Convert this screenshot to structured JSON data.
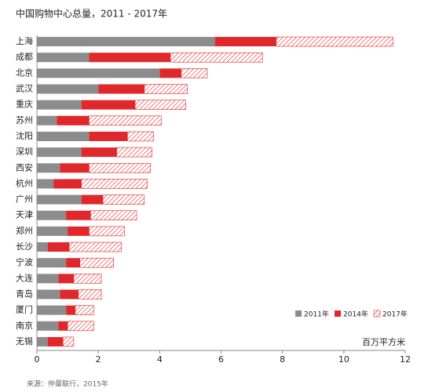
{
  "chart_data": {
    "type": "bar",
    "orientation": "horizontal",
    "stacked": true,
    "title": "中国购物中心总量，2011 - 2017年",
    "x_label": "百万平方米",
    "source": "来源：仲量联行，2015年",
    "categories": [
      "上海",
      "成都",
      "北京",
      "武汉",
      "重庆",
      "苏州",
      "沈阳",
      "深圳",
      "西安",
      "杭州",
      "广州",
      "天津",
      "郑州",
      "长沙",
      "宁波",
      "大连",
      "青岛",
      "厦门",
      "南京",
      "无锡"
    ],
    "series": [
      {
        "name": "2011年",
        "color": "#8c8c8c",
        "values": [
          5.8,
          1.7,
          4.0,
          2.0,
          1.45,
          0.65,
          1.7,
          1.45,
          0.75,
          0.55,
          1.45,
          0.95,
          1.0,
          0.35,
          0.95,
          0.7,
          0.75,
          0.95,
          0.7,
          0.35
        ]
      },
      {
        "name": "2014年",
        "color": "#e0282c",
        "values": [
          2.0,
          2.65,
          0.7,
          1.5,
          1.75,
          1.05,
          1.25,
          1.15,
          0.95,
          0.9,
          0.7,
          0.8,
          0.7,
          0.7,
          0.45,
          0.5,
          0.6,
          0.3,
          0.3,
          0.5
        ]
      },
      {
        "name": "2017年",
        "color": "#e0282c",
        "hatched": true,
        "values": [
          3.8,
          3.0,
          0.85,
          1.4,
          1.65,
          2.35,
          0.85,
          1.15,
          2.0,
          2.15,
          1.35,
          1.5,
          1.15,
          1.7,
          1.1,
          0.9,
          0.75,
          0.6,
          0.85,
          0.35
        ]
      }
    ],
    "xlim": [
      0,
      12
    ],
    "xticks": [
      0,
      2,
      4,
      6,
      8,
      10,
      12
    ],
    "legend": "lower-right"
  }
}
